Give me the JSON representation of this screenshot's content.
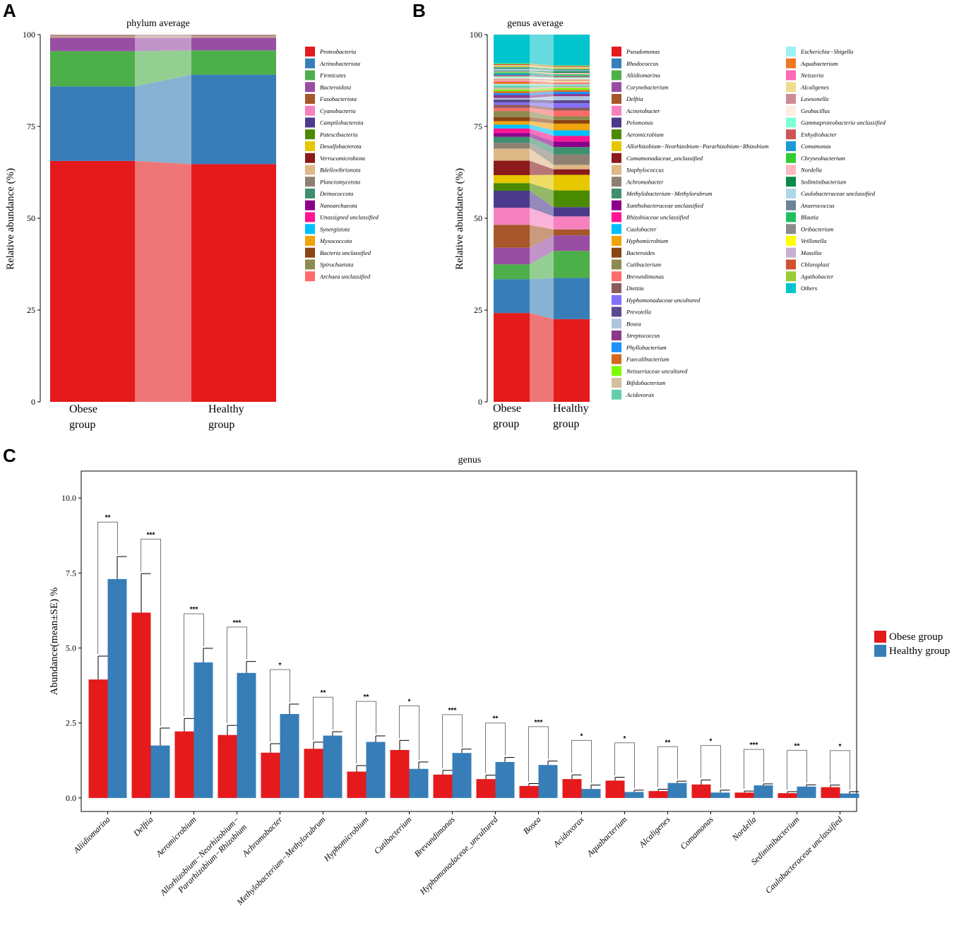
{
  "chart_data": [
    {
      "type": "bar",
      "subtype": "stacked-100",
      "panel": "A",
      "title": "phylum average",
      "ylabel": "Relative abundance (%)",
      "ylim": [
        0,
        100
      ],
      "yticks": [
        0,
        25,
        50,
        75,
        100
      ],
      "categories": [
        "Obese group",
        "Healthy group"
      ],
      "category_labels": [
        [
          "Obese",
          "group"
        ],
        [
          "Healthy",
          "group"
        ]
      ],
      "series": [
        {
          "name": "Proteobacteria",
          "color": "#e41a1c",
          "values": [
            65.6,
            64.8
          ]
        },
        {
          "name": "Actinobacteriota",
          "color": "#377eb8",
          "values": [
            20.3,
            24.4
          ]
        },
        {
          "name": "Firmicutes",
          "color": "#4daf4a",
          "values": [
            9.6,
            6.6
          ]
        },
        {
          "name": "Bacteroidota",
          "color": "#984ea3",
          "values": [
            3.6,
            3.4
          ]
        },
        {
          "name": "Fusobacteriota",
          "color": "#a65628",
          "values": [
            0.05,
            0.05
          ]
        },
        {
          "name": "Cyanobacteria",
          "color": "#f781bf",
          "values": [
            0.1,
            0.1
          ]
        },
        {
          "name": "Campilobacterota",
          "color": "#4b3a8c",
          "values": [
            0.05,
            0.05
          ]
        },
        {
          "name": "Patescibacteria",
          "color": "#4a8a00",
          "values": [
            0.05,
            0.05
          ]
        },
        {
          "name": "Desulfobacterota",
          "color": "#e6c700",
          "values": [
            0.05,
            0.05
          ]
        },
        {
          "name": "Verrucomicrobiota",
          "color": "#8b1a1a",
          "values": [
            0.05,
            0.05
          ]
        },
        {
          "name": "Bdellovibrionota",
          "color": "#deb887",
          "values": [
            0.1,
            0.1
          ]
        },
        {
          "name": "Planctomycetota",
          "color": "#8c8172",
          "values": [
            0.05,
            0.05
          ]
        },
        {
          "name": "Deinococcota",
          "color": "#3f8f6f",
          "values": [
            0.05,
            0.05
          ]
        },
        {
          "name": "Nanoarchaeota",
          "color": "#8b008b",
          "values": [
            0.05,
            0.05
          ]
        },
        {
          "name": "Unassigned unclassified",
          "color": "#ff1493",
          "values": [
            0.05,
            0.05
          ]
        },
        {
          "name": "Synergistota",
          "color": "#00bfff",
          "values": [
            0.05,
            0.05
          ]
        },
        {
          "name": "Myxococcota",
          "color": "#f0a30a",
          "values": [
            0.05,
            0.05
          ]
        },
        {
          "name": "Bacteria unclassified",
          "color": "#8b4513",
          "values": [
            0.05,
            0.05
          ]
        },
        {
          "name": "Spirochaetota",
          "color": "#8f8a4f",
          "values": [
            0.05,
            0.05
          ]
        },
        {
          "name": "Archaea unclassified",
          "color": "#ff6b6b",
          "values": [
            0.05,
            0.05
          ]
        }
      ]
    },
    {
      "type": "bar",
      "subtype": "stacked-100",
      "panel": "B",
      "title": "genus average",
      "ylabel": "Relative abundance (%)",
      "ylim": [
        0,
        100
      ],
      "yticks": [
        0,
        25,
        50,
        75,
        100
      ],
      "categories": [
        "Obese group",
        "Healthy group"
      ],
      "category_labels": [
        [
          "Obese",
          "group"
        ],
        [
          "Healthy",
          "group"
        ]
      ],
      "series": [
        {
          "name": "Pseudomonas",
          "color": "#e41a1c",
          "values": [
            23.4,
            22.3
          ]
        },
        {
          "name": "Rhodococcus",
          "color": "#377eb8",
          "values": [
            8.9,
            11.1
          ]
        },
        {
          "name": "Aliidiomarina",
          "color": "#4daf4a",
          "values": [
            3.9,
            7.3
          ]
        },
        {
          "name": "Corynebacterium",
          "color": "#984ea3",
          "values": [
            4.4,
            4.2
          ]
        },
        {
          "name": "Delftia",
          "color": "#a65628",
          "values": [
            6.0,
            1.6
          ]
        },
        {
          "name": "Acinetobacter",
          "color": "#f781bf",
          "values": [
            4.5,
            3.5
          ]
        },
        {
          "name": "Pelomonas",
          "color": "#4b3a8c",
          "values": [
            4.5,
            2.5
          ]
        },
        {
          "name": "Aeromicrobium",
          "color": "#4a8a00",
          "values": [
            2.0,
            4.5
          ]
        },
        {
          "name": "Allorhizobium−Neorhizobium−Pararhizobium−Rhizobium",
          "color": "#e6c700",
          "values": [
            2.1,
            4.2
          ]
        },
        {
          "name": "Comamonadaceae_unclassified",
          "color": "#8b1a1a",
          "values": [
            3.8,
            1.5
          ]
        },
        {
          "name": "Staphylococcus",
          "color": "#deb887",
          "values": [
            3.2,
            1.2
          ]
        },
        {
          "name": "Achromobacter",
          "color": "#8c8172",
          "values": [
            1.5,
            2.8
          ]
        },
        {
          "name": "Methylobacterium−Methylorubrum",
          "color": "#3f8f6f",
          "values": [
            1.6,
            2.0
          ]
        },
        {
          "name": "Xanthobacteraceae unclassified",
          "color": "#8b008b",
          "values": [
            1.0,
            1.5
          ]
        },
        {
          "name": "Rhizobiaceae unclassified",
          "color": "#ff1493",
          "values": [
            1.2,
            1.5
          ]
        },
        {
          "name": "Caulobacter",
          "color": "#00bfff",
          "values": [
            1.0,
            1.5
          ]
        },
        {
          "name": "Hyphomicrobium",
          "color": "#f0a30a",
          "values": [
            0.9,
            1.8
          ]
        },
        {
          "name": "Bacteroides",
          "color": "#8b4513",
          "values": [
            1.1,
            1.0
          ]
        },
        {
          "name": "Cutibacterium",
          "color": "#8f8a4f",
          "values": [
            1.6,
            1.0
          ]
        },
        {
          "name": "Brevundimonas",
          "color": "#ff6b6b",
          "values": [
            0.8,
            1.5
          ]
        },
        {
          "name": "Dietzia",
          "color": "#8b5a5a",
          "values": [
            0.8,
            0.8
          ]
        },
        {
          "name": "Hyphomonadaceae uncultured",
          "color": "#8470ff",
          "values": [
            0.6,
            1.2
          ]
        },
        {
          "name": "Prevotella",
          "color": "#5b4a8f",
          "values": [
            0.8,
            0.8
          ]
        },
        {
          "name": "Bosea",
          "color": "#b0c4de",
          "values": [
            0.4,
            1.1
          ]
        },
        {
          "name": "Streptococcus",
          "color": "#8b3a8b",
          "values": [
            0.8,
            0.6
          ]
        },
        {
          "name": "Phyllobacterium",
          "color": "#1e90ff",
          "values": [
            0.5,
            0.6
          ]
        },
        {
          "name": "Faecalibacterium",
          "color": "#d2691e",
          "values": [
            0.5,
            0.5
          ]
        },
        {
          "name": "Neisseriaceae uncultured",
          "color": "#7cfc00",
          "values": [
            0.4,
            0.5
          ]
        },
        {
          "name": "Bifidobacterium",
          "color": "#d2c0a0",
          "values": [
            0.5,
            0.4
          ]
        },
        {
          "name": "Acidovorax",
          "color": "#66cdaa",
          "values": [
            0.6,
            0.3
          ]
        },
        {
          "name": "Escherichia−Shigella",
          "color": "#a0f0f8",
          "values": [
            0.4,
            0.3
          ]
        },
        {
          "name": "Aquabacterium",
          "color": "#f07820",
          "values": [
            0.6,
            0.2
          ]
        },
        {
          "name": "Neisseria",
          "color": "#ff69b4",
          "values": [
            0.3,
            0.3
          ]
        },
        {
          "name": "Alcaligenes",
          "color": "#f0dc8c",
          "values": [
            0.2,
            0.5
          ]
        },
        {
          "name": "Lawsonella",
          "color": "#cd8c95",
          "values": [
            0.3,
            0.3
          ]
        },
        {
          "name": "Geobacillus",
          "color": "#fdeee0",
          "values": [
            0.3,
            0.3
          ]
        },
        {
          "name": "Gammaproteobacteria unclassified",
          "color": "#7fffd4",
          "values": [
            0.3,
            0.3
          ]
        },
        {
          "name": "Enhydrobacter",
          "color": "#cd5555",
          "values": [
            0.3,
            0.3
          ]
        },
        {
          "name": "Comamonas",
          "color": "#1c9ad6",
          "values": [
            0.5,
            0.2
          ]
        },
        {
          "name": "Chryseobacterium",
          "color": "#32cd32",
          "values": [
            0.3,
            0.3
          ]
        },
        {
          "name": "Nordella",
          "color": "#ffb6c1",
          "values": [
            0.2,
            0.4
          ]
        },
        {
          "name": "Sediminibacterium",
          "color": "#0a8a4a",
          "values": [
            0.2,
            0.4
          ]
        },
        {
          "name": "Caulobacteraceae unclassified",
          "color": "#add8e6",
          "values": [
            0.4,
            0.2
          ]
        },
        {
          "name": "Anaerococcus",
          "color": "#6b8796",
          "values": [
            0.3,
            0.2
          ]
        },
        {
          "name": "Blautia",
          "color": "#20c060",
          "values": [
            0.2,
            0.2
          ]
        },
        {
          "name": "Oribacterium",
          "color": "#8b8b8b",
          "values": [
            0.2,
            0.2
          ]
        },
        {
          "name": "Veillonella",
          "color": "#ffff00",
          "values": [
            0.2,
            0.2
          ]
        },
        {
          "name": "Massilia",
          "color": "#c8b0d0",
          "values": [
            0.2,
            0.2
          ]
        },
        {
          "name": "Chloroplast",
          "color": "#d05030",
          "values": [
            0.2,
            0.2
          ]
        },
        {
          "name": "Agathobacter",
          "color": "#9acd32",
          "values": [
            0.2,
            0.2
          ]
        },
        {
          "name": "Others",
          "color": "#00c5cd",
          "values": [
            7.6,
            8.3
          ]
        }
      ]
    },
    {
      "type": "bar",
      "subtype": "grouped-errorbar",
      "panel": "C",
      "title": "genus",
      "ylabel": "Abundance(mean±SE) %",
      "ylim": [
        -0.45,
        10.9
      ],
      "yticks": [
        0.0,
        2.5,
        5.0,
        7.5,
        10.0
      ],
      "ytick_labels": [
        "0.0",
        "2.5",
        "5.0",
        "7.5",
        "10.0"
      ],
      "categories": [
        "Aliidiomarina",
        "Delftia",
        "Aeromicrobium",
        "Allorhizobium−Neorhizobium− Pararhizobium−Rhizobium",
        "Achromobacter",
        "Methylobacterium−Methylorubrum",
        "Hyphomicrobium",
        "Cutibacterium",
        "Brevundimonas",
        "Hyphomonadaceae_uncultured",
        "Bosea",
        "Acidovorax",
        "Aquabacterium",
        "Alcaligenes",
        "Comamonas",
        "Nordella",
        "Sediminibacterium",
        "Caulobacteraceae unclassified"
      ],
      "category_lines": [
        [
          "Aliidiomarina"
        ],
        [
          "Delftia"
        ],
        [
          "Aeromicrobium"
        ],
        [
          "Allorhizobium−Neorhizobium−",
          "Pararhizobium−Rhizobium"
        ],
        [
          "Achromobacter"
        ],
        [
          "Methylobacterium−Methylorubrum"
        ],
        [
          "Hyphomicrobium"
        ],
        [
          "Cutibacterium"
        ],
        [
          "Brevundimonas"
        ],
        [
          "Hyphomonadaceae_uncultured"
        ],
        [
          "Bosea"
        ],
        [
          "Acidovorax"
        ],
        [
          "Aquabacterium"
        ],
        [
          "Alcaligenes"
        ],
        [
          "Comamonas"
        ],
        [
          "Nordella"
        ],
        [
          "Sediminibacterium"
        ],
        [
          "Caulobacteraceae unclassified"
        ]
      ],
      "series": [
        {
          "name": "Obese group",
          "color": "#e41a1c",
          "values": [
            3.95,
            6.18,
            2.22,
            2.1,
            1.51,
            1.64,
            0.88,
            1.6,
            0.78,
            0.63,
            0.4,
            0.63,
            0.58,
            0.23,
            0.45,
            0.18,
            0.16,
            0.36
          ],
          "se": [
            0.78,
            1.3,
            0.43,
            0.32,
            0.3,
            0.22,
            0.2,
            0.32,
            0.14,
            0.13,
            0.08,
            0.14,
            0.11,
            0.06,
            0.15,
            0.05,
            0.05,
            0.07
          ]
        },
        {
          "name": "Healthy group",
          "color": "#377eb8",
          "values": [
            7.3,
            1.75,
            4.52,
            4.17,
            2.8,
            2.08,
            1.87,
            0.97,
            1.5,
            1.2,
            1.1,
            0.3,
            0.2,
            0.5,
            0.18,
            0.42,
            0.38,
            0.15
          ],
          "se": [
            0.75,
            0.58,
            0.47,
            0.38,
            0.33,
            0.13,
            0.2,
            0.23,
            0.13,
            0.15,
            0.13,
            0.13,
            0.06,
            0.06,
            0.08,
            0.05,
            0.06,
            0.06
          ]
        }
      ],
      "significance": [
        "**",
        "***",
        "***",
        "***",
        "*",
        "**",
        "**",
        "*",
        "***",
        "**",
        "***",
        "*",
        "*",
        "**",
        "*",
        "***",
        "**",
        "*"
      ],
      "legend_position": "right"
    }
  ]
}
